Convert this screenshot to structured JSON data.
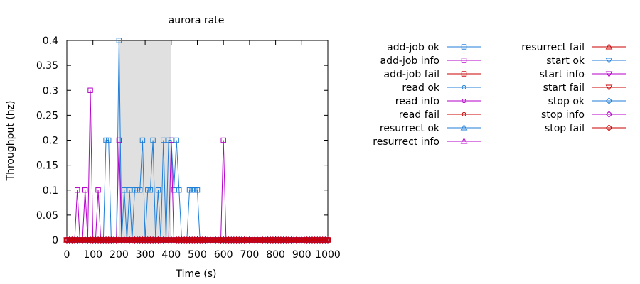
{
  "chart_data": {
    "type": "line",
    "title": "aurora rate",
    "xlabel": "Time (s)",
    "ylabel": "Throughput (hz)",
    "xlim": [
      0,
      1000
    ],
    "ylim": [
      0,
      0.4
    ],
    "xticks": [
      0,
      100,
      200,
      300,
      400,
      500,
      600,
      700,
      800,
      900,
      1000
    ],
    "yticks": [
      0,
      0.05,
      0.1,
      0.15,
      0.2,
      0.25,
      0.3,
      0.35,
      0.4
    ],
    "grid": false,
    "legend_position": "right, two columns",
    "shaded_region": {
      "x": [
        200,
        400
      ],
      "color": "#e0e0e0"
    },
    "sample_interval": 10,
    "series": [
      {
        "name": "add-job ok",
        "color": "#1f7ed8",
        "marker": "square",
        "points": [
          [
            150,
            0.2
          ],
          [
            160,
            0.2
          ],
          [
            200,
            0.4
          ],
          [
            220,
            0.1
          ],
          [
            240,
            0.1
          ],
          [
            260,
            0.1
          ],
          [
            270,
            0.1
          ],
          [
            280,
            0.1
          ],
          [
            290,
            0.2
          ],
          [
            310,
            0.1
          ],
          [
            320,
            0.1
          ],
          [
            330,
            0.2
          ],
          [
            350,
            0.1
          ],
          [
            370,
            0.2
          ],
          [
            390,
            0.2
          ],
          [
            400,
            0.2
          ],
          [
            410,
            0.1
          ],
          [
            420,
            0.2
          ],
          [
            430,
            0.1
          ],
          [
            470,
            0.1
          ],
          [
            480,
            0.1
          ],
          [
            490,
            0.1
          ],
          [
            500,
            0.1
          ]
        ]
      },
      {
        "name": "add-job info",
        "color": "#b400c8",
        "marker": "square",
        "points": [
          [
            40,
            0.1
          ],
          [
            70,
            0.1
          ],
          [
            90,
            0.3
          ],
          [
            120,
            0.1
          ],
          [
            200,
            0.2
          ],
          [
            400,
            0.2
          ],
          [
            600,
            0.2
          ]
        ]
      },
      {
        "name": "add-job fail",
        "color": "#c80000",
        "marker": "square",
        "points": []
      },
      {
        "name": "read ok",
        "color": "#1f7ed8",
        "marker": "circle",
        "points": []
      },
      {
        "name": "read info",
        "color": "#b400c8",
        "marker": "circle",
        "points": []
      },
      {
        "name": "read fail",
        "color": "#c80000",
        "marker": "circle",
        "points": []
      },
      {
        "name": "resurrect ok",
        "color": "#1f7ed8",
        "marker": "triangle",
        "points": []
      },
      {
        "name": "resurrect info",
        "color": "#b400c8",
        "marker": "triangle",
        "points": []
      },
      {
        "name": "resurrect fail",
        "color": "#c80000",
        "marker": "triangle",
        "points": []
      },
      {
        "name": "start ok",
        "color": "#1f7ed8",
        "marker": "triangle-down",
        "points": []
      },
      {
        "name": "start info",
        "color": "#b400c8",
        "marker": "triangle-down",
        "points": []
      },
      {
        "name": "start fail",
        "color": "#c80000",
        "marker": "triangle-down",
        "points": []
      },
      {
        "name": "stop ok",
        "color": "#1f7ed8",
        "marker": "diamond",
        "points": []
      },
      {
        "name": "stop info",
        "color": "#b400c8",
        "marker": "diamond",
        "points": []
      },
      {
        "name": "stop fail",
        "color": "#c80000",
        "marker": "diamond",
        "points": []
      }
    ]
  }
}
